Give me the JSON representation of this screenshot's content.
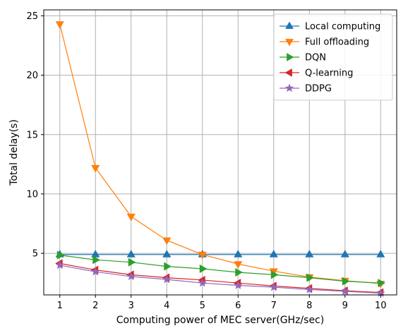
{
  "chart_data": {
    "type": "line",
    "xlabel": "Computing power of MEC server(GHz/sec)",
    "ylabel": "Total delay(s)",
    "xlim": [
      0.55,
      10.45
    ],
    "ylim": [
      1.5,
      25.5
    ],
    "xticks": [
      1,
      2,
      3,
      4,
      5,
      6,
      7,
      8,
      9,
      10
    ],
    "yticks": [
      5,
      10,
      15,
      20,
      25
    ],
    "grid": true,
    "legend_position": "top-right",
    "x": [
      1,
      2,
      3,
      4,
      5,
      6,
      7,
      8,
      9,
      10
    ],
    "series": [
      {
        "name": "Local computing",
        "color": "#1f77b4",
        "marker": "triangle-up",
        "values": [
          4.9,
          4.9,
          4.9,
          4.9,
          4.9,
          4.9,
          4.9,
          4.9,
          4.9,
          4.9
        ]
      },
      {
        "name": "Full offloading",
        "color": "#ff7f0e",
        "marker": "triangle-down",
        "values": [
          24.3,
          12.2,
          8.1,
          6.1,
          4.9,
          4.1,
          3.5,
          3.0,
          2.7,
          2.45
        ]
      },
      {
        "name": "DQN",
        "color": "#2ca02c",
        "marker": "triangle-right",
        "values": [
          4.85,
          4.45,
          4.25,
          3.9,
          3.7,
          3.4,
          3.2,
          2.95,
          2.65,
          2.5
        ]
      },
      {
        "name": "Q-learning",
        "color": "#d62728",
        "marker": "triangle-left",
        "values": [
          4.15,
          3.6,
          3.2,
          2.95,
          2.75,
          2.5,
          2.25,
          2.05,
          1.85,
          1.7
        ]
      },
      {
        "name": "DDPG",
        "color": "#9467bd",
        "marker": "star",
        "values": [
          4.0,
          3.45,
          3.05,
          2.8,
          2.5,
          2.3,
          2.15,
          1.95,
          1.8,
          1.65
        ]
      }
    ]
  }
}
